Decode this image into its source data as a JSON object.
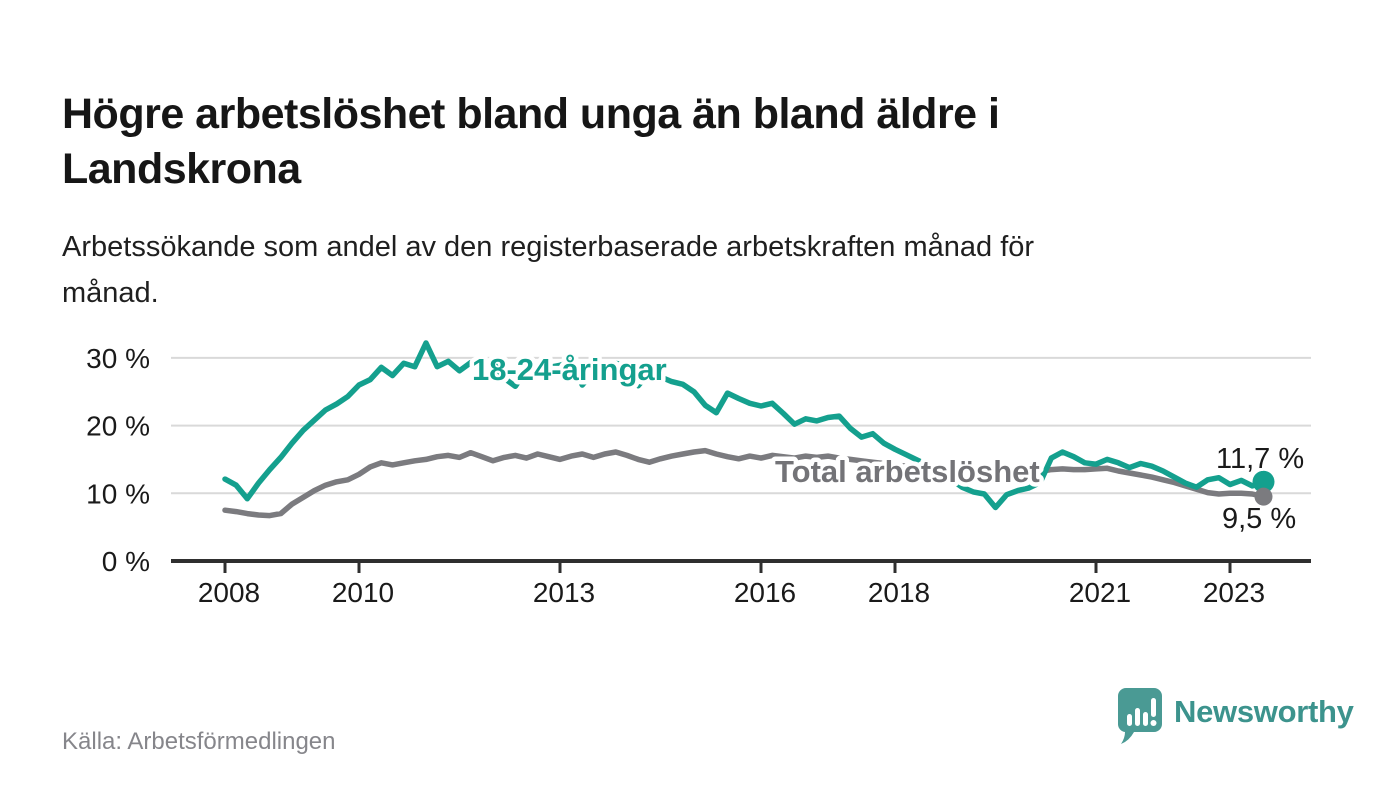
{
  "chart_data": {
    "type": "line",
    "title": "Högre arbetslöshet bland unga än bland äldre i Landskrona",
    "subtitle": "Arbetssökande som andel av den registerbaserade arbetskraften månad för månad.",
    "source": "Källa: Arbetsförmedlingen",
    "unit": "%",
    "x_start_year": 2008,
    "points_per_year": 6,
    "x_tick_years": [
      2008,
      2010,
      2013,
      2016,
      2018,
      2021,
      2023
    ],
    "x_tick_labels": [
      "2008",
      "2010",
      "2013",
      "2016",
      "2018",
      "2021",
      "2023"
    ],
    "y_ticks": [
      0,
      10,
      20,
      30
    ],
    "y_tick_labels": [
      "0 %",
      "10 %",
      "20 %",
      "30 %"
    ],
    "ylim": [
      0,
      33
    ],
    "grid": "horizontal-only",
    "legend": "inline-series-labels",
    "series": [
      {
        "name": "18-24-åringar",
        "color": "#14a08e",
        "end_label": "11,7 %",
        "end_value": 11.7,
        "values": [
          12.1,
          11.2,
          9.2,
          11.5,
          13.5,
          15.3,
          17.4,
          19.3,
          20.8,
          22.3,
          23.2,
          24.3,
          26.0,
          26.8,
          28.6,
          27.4,
          29.2,
          28.7,
          32.2,
          28.7,
          29.5,
          28.1,
          29.3,
          29.2,
          29.3,
          27.0,
          25.8,
          28.3,
          29.0,
          28.6,
          28.9,
          29.4,
          26.0,
          28.0,
          28.8,
          29.2,
          28.8,
          25.9,
          27.8,
          27.2,
          26.5,
          26.1,
          25.0,
          23.0,
          21.9,
          24.8,
          24.0,
          23.3,
          22.9,
          23.3,
          21.8,
          20.2,
          21.0,
          20.7,
          21.2,
          21.4,
          19.6,
          18.3,
          18.8,
          17.4,
          16.5,
          15.7,
          14.9,
          14.1,
          13.2,
          12.1,
          10.9,
          10.2,
          9.9,
          7.9,
          9.8,
          10.4,
          10.8,
          11.6,
          15.2,
          16.1,
          15.4,
          14.5,
          14.3,
          15.0,
          14.5,
          13.8,
          14.4,
          14.0,
          13.3,
          12.4,
          11.5,
          10.9,
          12.0,
          12.3,
          11.3,
          11.9,
          11.1,
          11.7
        ]
      },
      {
        "name": "Total arbetslöshet",
        "color": "#7b7b7f",
        "end_label": "9,5 %",
        "end_value": 9.5,
        "values": [
          7.5,
          7.3,
          7.0,
          6.8,
          6.7,
          7.0,
          8.4,
          9.4,
          10.4,
          11.2,
          11.7,
          12.0,
          12.8,
          13.9,
          14.5,
          14.2,
          14.5,
          14.8,
          15.0,
          15.4,
          15.6,
          15.3,
          16.0,
          15.4,
          14.8,
          15.3,
          15.6,
          15.2,
          15.8,
          15.4,
          15.0,
          15.5,
          15.8,
          15.3,
          15.8,
          16.1,
          15.6,
          15.0,
          14.6,
          15.1,
          15.5,
          15.8,
          16.1,
          16.3,
          15.8,
          15.4,
          15.1,
          15.5,
          15.2,
          15.6,
          15.4,
          15.2,
          15.5,
          15.3,
          15.5,
          15.2,
          15.0,
          14.8,
          14.6,
          14.4,
          14.2,
          14.0,
          13.8,
          13.6,
          13.4,
          13.2,
          13.0,
          12.9,
          12.8,
          12.7,
          12.8,
          12.9,
          13.0,
          13.2,
          13.5,
          13.6,
          13.5,
          13.5,
          13.6,
          13.7,
          13.3,
          13.0,
          12.7,
          12.4,
          12.0,
          11.6,
          11.1,
          10.6,
          10.1,
          9.9,
          10.0,
          10.0,
          9.9,
          9.5
        ]
      }
    ],
    "colors": {
      "grid": "#d9d9d9",
      "axis": "#2f2f2f",
      "text": "#1a1a1a",
      "total_label": "#737377",
      "halo": "#ffffff"
    }
  },
  "footer": {
    "source": "Källa: Arbetsförmedlingen",
    "brand_name": "Newsworthy",
    "brand_logo_icon": "speech-bubble-bar-chart-icon",
    "brand_color": "#3c938d",
    "logo_color": "#4a9a94"
  }
}
